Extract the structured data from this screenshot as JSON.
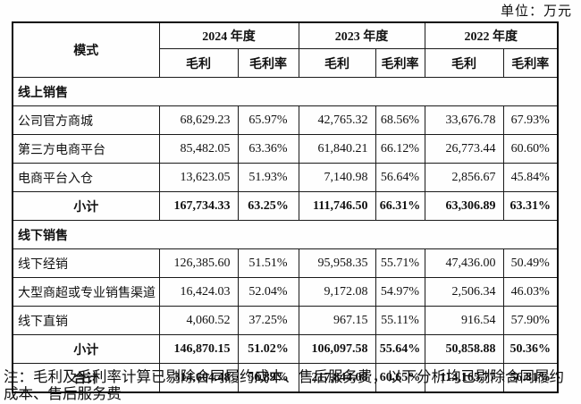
{
  "unit_label": "单位：万元",
  "table": {
    "header": {
      "mode": "模式",
      "year_groups": [
        {
          "label": "2024 年度"
        },
        {
          "label": "2023 年度"
        },
        {
          "label": "2022 年度"
        }
      ],
      "sub_columns": [
        "毛利",
        "毛利率"
      ]
    },
    "rows": [
      {
        "type": "section",
        "label": "线上销售",
        "values": []
      },
      {
        "type": "data",
        "label": "公司官方商城",
        "values": [
          "68,629.23",
          "65.97%",
          "42,765.32",
          "68.56%",
          "33,676.78",
          "67.93%"
        ]
      },
      {
        "type": "data",
        "label": "第三方电商平台",
        "values": [
          "85,482.05",
          "63.36%",
          "61,840.21",
          "66.12%",
          "26,773.44",
          "60.60%"
        ]
      },
      {
        "type": "data",
        "label": "电商平台入仓",
        "values": [
          "13,623.05",
          "51.93%",
          "7,140.98",
          "56.64%",
          "2,856.67",
          "45.84%"
        ]
      },
      {
        "type": "subtotal",
        "label": "小计",
        "values": [
          "167,734.33",
          "63.25%",
          "111,746.50",
          "66.31%",
          "63,306.89",
          "63.31%"
        ]
      },
      {
        "type": "section",
        "label": "线下销售",
        "values": []
      },
      {
        "type": "data",
        "label": "线下经销",
        "values": [
          "126,385.60",
          "51.51%",
          "95,958.35",
          "55.71%",
          "47,436.00",
          "50.49%"
        ]
      },
      {
        "type": "data",
        "label": "大型商超或专业销售渠道",
        "values": [
          "16,424.03",
          "52.04%",
          "9,172.08",
          "54.97%",
          "2,506.34",
          "46.03%"
        ]
      },
      {
        "type": "data",
        "label": "线下直销",
        "values": [
          "4,060.52",
          "37.25%",
          "967.15",
          "55.11%",
          "916.54",
          "57.90%"
        ]
      },
      {
        "type": "subtotal",
        "label": "小计",
        "values": [
          "146,870.15",
          "51.02%",
          "106,097.58",
          "55.64%",
          "50,858.88",
          "50.36%"
        ]
      },
      {
        "type": "total",
        "label": "合计",
        "values": [
          "314,604.48",
          "56.89%",
          "217,844.08",
          "60.65%",
          "114,165.77",
          "56.81%"
        ]
      }
    ]
  },
  "note": "注：毛利及毛利率计算已剔除合同履约成本、售后服务费，以下分析均已剔除合同履约成本、售后服务费"
}
